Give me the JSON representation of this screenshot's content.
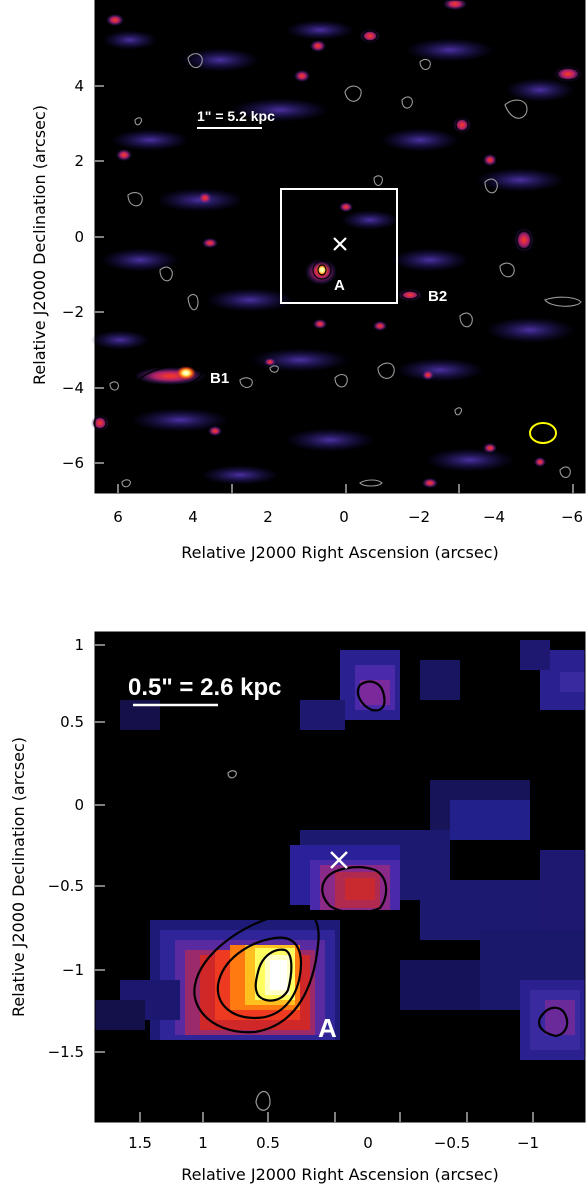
{
  "top_panel": {
    "xlabel": "Relative J2000 Right Ascension (arcsec)",
    "ylabel": "Relative J2000 Declination (arcsec)",
    "x_ticks": [
      "6",
      "4",
      "2",
      "0",
      "−2",
      "−4",
      "−6"
    ],
    "y_ticks": [
      "4",
      "2",
      "0",
      "−2",
      "−4",
      "−6"
    ],
    "scale_bar": "1\" = 5.2 kpc",
    "source_labels": [
      "A",
      "B1",
      "B2"
    ],
    "marker": "×",
    "beam_color": "#ffff00",
    "box_color": "#ffffff"
  },
  "bottom_panel": {
    "xlabel": "Relative J2000 Right Ascension (arcsec)",
    "ylabel": "Relative J2000 Declination (arcsec)",
    "x_ticks": [
      "1.5",
      "1",
      "0.5",
      "0",
      "−0.5",
      "−1"
    ],
    "y_ticks": [
      "1",
      "0.5",
      "0",
      "−0.5",
      "−1",
      "−1.5"
    ],
    "scale_bar": "0.5\" = 2.6 kpc",
    "source_labels": [
      "A"
    ],
    "marker": "×"
  },
  "colors": {
    "background": "#000000",
    "emission_low": "#2a1f8f",
    "emission_mid": "#8a2a8a",
    "emission_high": "#d0202a",
    "peak": "#ffffff",
    "contour": "#000000",
    "negative_contour": "#9a9a9a"
  }
}
